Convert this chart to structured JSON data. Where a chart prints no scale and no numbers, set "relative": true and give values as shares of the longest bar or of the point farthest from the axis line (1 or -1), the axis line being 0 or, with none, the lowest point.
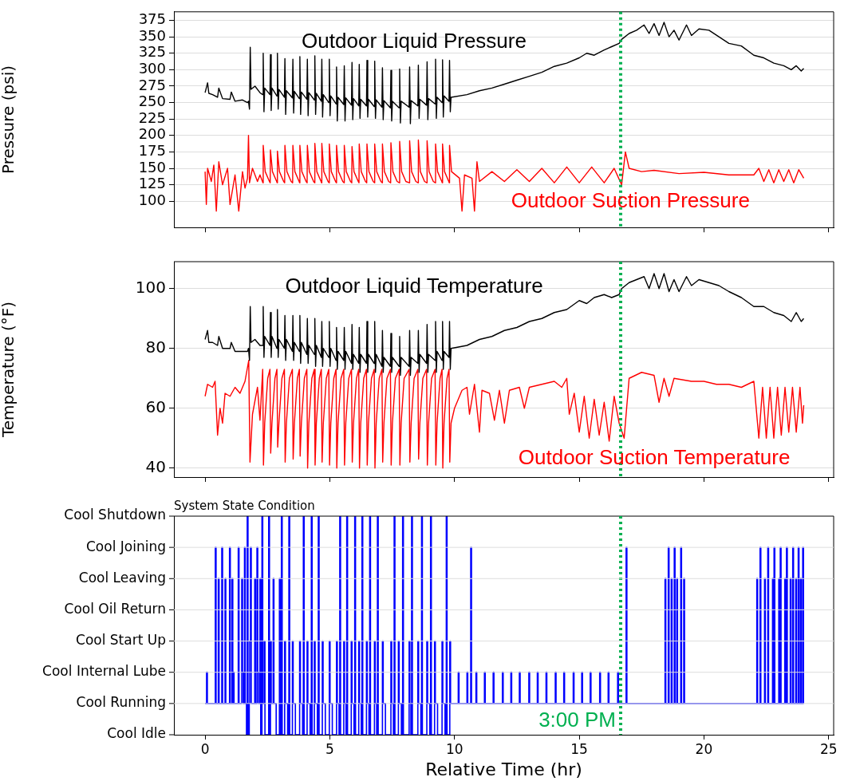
{
  "chart_data": [
    {
      "type": "line",
      "ylabel": "Pressure (psi)",
      "xlim": [
        -1.25,
        25.2
      ],
      "xticks": [
        0,
        5,
        10,
        15,
        20,
        25
      ],
      "ylim": [
        60,
        388
      ],
      "yticks": [
        100,
        125,
        150,
        175,
        200,
        225,
        250,
        275,
        300,
        325,
        350,
        375
      ],
      "grid": "y",
      "tick_labels": "y",
      "ref_lines": [
        {
          "axis": "x",
          "value": 16.66,
          "color": "#00b050",
          "line_style": "dotted"
        }
      ],
      "series": [
        {
          "name": "Outdoor Liquid Pressure",
          "color": "#000000",
          "x": [
            0,
            0.1,
            0.15,
            0.3,
            0.5,
            0.55,
            0.7,
            1.0,
            1.05,
            1.2,
            1.5,
            1.7,
            1.74,
            1.78,
            1.81,
            1.84,
            2.0,
            2.2,
            2.31,
            2.33,
            2.36,
            2.39,
            2.6,
            2.62,
            2.65,
            2.68,
            2.88,
            2.9,
            2.93,
            2.96,
            3.18,
            3.2,
            3.23,
            3.26,
            3.5,
            3.52,
            3.55,
            3.58,
            3.78,
            3.8,
            3.83,
            3.86,
            4.08,
            4.1,
            4.13,
            4.16,
            4.38,
            4.4,
            4.43,
            4.46,
            4.66,
            4.68,
            4.71,
            4.74,
            4.96,
            4.98,
            5.01,
            5.04,
            5.25,
            5.27,
            5.3,
            5.33,
            5.56,
            5.58,
            5.61,
            5.64,
            5.87,
            5.89,
            5.92,
            5.95,
            6.16,
            6.18,
            6.21,
            6.24,
            6.47,
            6.49,
            6.52,
            6.55,
            6.78,
            6.8,
            6.83,
            6.86,
            7.09,
            7.11,
            7.14,
            7.17,
            7.43,
            7.45,
            7.48,
            7.51,
            7.78,
            7.8,
            7.83,
            7.86,
            8.18,
            8.2,
            8.23,
            8.26,
            8.53,
            8.55,
            8.58,
            8.61,
            8.88,
            8.9,
            8.93,
            8.96,
            9.22,
            9.24,
            9.27,
            9.3,
            9.5,
            9.52,
            9.55,
            9.58,
            9.78,
            9.8,
            9.83,
            9.86,
            10.5,
            11,
            11.5,
            12,
            12.5,
            13,
            13.5,
            14,
            14.5,
            15,
            15.3,
            15.6,
            16,
            16.3,
            16.6,
            16.7,
            17,
            17.3,
            17.6,
            17.8,
            18,
            18.2,
            18.4,
            18.6,
            18.8,
            19,
            19.3,
            19.5,
            19.8,
            20.2,
            20.6,
            21,
            21.5,
            22,
            22.4,
            22.8,
            23.2,
            23.5,
            23.7,
            23.9,
            24
          ],
          "values": [
            265,
            280,
            264,
            262,
            258,
            272,
            256,
            255,
            266,
            252,
            254,
            250,
            252,
            240,
            334,
            270,
            275,
            265,
            262,
            325,
            236,
            272,
            262,
            323,
            238,
            272,
            260,
            325,
            240,
            270,
            258,
            317,
            232,
            268,
            257,
            316,
            234,
            267,
            256,
            320,
            232,
            266,
            255,
            316,
            230,
            265,
            254,
            321,
            232,
            264,
            252,
            316,
            228,
            262,
            250,
            316,
            230,
            260,
            248,
            304,
            222,
            258,
            247,
            306,
            222,
            257,
            246,
            311,
            224,
            256,
            245,
            308,
            226,
            255,
            245,
            314,
            228,
            255,
            244,
            313,
            226,
            254,
            243,
            303,
            224,
            253,
            242,
            299,
            222,
            252,
            242,
            301,
            219,
            252,
            243,
            304,
            218,
            253,
            245,
            307,
            226,
            255,
            246,
            312,
            224,
            256,
            248,
            316,
            226,
            258,
            250,
            315,
            228,
            260,
            252,
            314,
            236,
            258,
            262,
            268,
            272,
            278,
            284,
            290,
            296,
            305,
            310,
            318,
            325,
            322,
            330,
            335,
            340,
            346,
            355,
            360,
            368,
            355,
            370,
            352,
            372,
            350,
            360,
            345,
            368,
            352,
            362,
            360,
            350,
            340,
            336,
            322,
            318,
            310,
            306,
            300,
            306,
            298,
            302
          ]
        },
        {
          "name": "Outdoor Suction Pressure",
          "color": "#ff0000",
          "x": [
            0,
            0.05,
            0.1,
            0.25,
            0.35,
            0.45,
            0.55,
            0.7,
            0.9,
            1.0,
            1.2,
            1.35,
            1.5,
            1.6,
            1.7,
            1.74,
            1.78,
            1.9,
            2.1,
            2.2,
            2.32,
            2.33,
            2.41,
            2.58,
            2.61,
            2.62,
            2.7,
            2.87,
            2.89,
            2.9,
            2.98,
            3.15,
            3.19,
            3.2,
            3.28,
            3.45,
            3.51,
            3.52,
            3.6,
            3.77,
            3.79,
            3.8,
            3.88,
            4.05,
            4.09,
            4.1,
            4.18,
            4.35,
            4.39,
            4.4,
            4.48,
            4.65,
            4.67,
            4.68,
            4.76,
            4.93,
            4.97,
            4.98,
            5.06,
            5.23,
            5.26,
            5.27,
            5.35,
            5.52,
            5.57,
            5.58,
            5.66,
            5.83,
            5.88,
            5.89,
            5.97,
            6.14,
            6.17,
            6.18,
            6.26,
            6.43,
            6.48,
            6.49,
            6.57,
            6.74,
            6.79,
            6.8,
            6.88,
            7.05,
            7.1,
            7.11,
            7.19,
            7.36,
            7.44,
            7.45,
            7.53,
            7.7,
            7.79,
            7.8,
            7.88,
            8.05,
            8.19,
            8.2,
            8.28,
            8.45,
            8.54,
            8.55,
            8.63,
            8.8,
            8.89,
            8.9,
            8.98,
            9.15,
            9.23,
            9.24,
            9.32,
            9.49,
            9.51,
            9.52,
            9.6,
            9.77,
            9.79,
            9.8,
            9.88,
            10.2,
            10.3,
            10.4,
            10.7,
            10.8,
            10.9,
            11.0,
            11.5,
            12,
            12.5,
            13,
            13.5,
            14,
            14.5,
            15,
            15.5,
            16,
            16.4,
            16.7,
            16.85,
            17,
            17.5,
            18,
            19,
            20,
            21,
            22,
            22.2,
            22.4,
            22.6,
            22.8,
            23,
            23.2,
            23.4,
            23.6,
            23.8,
            24
          ],
          "values": [
            145,
            95,
            150,
            130,
            155,
            85,
            160,
            125,
            150,
            95,
            140,
            85,
            145,
            120,
            135,
            200,
            128,
            150,
            130,
            140,
            128,
            185,
            145,
            130,
            128,
            178,
            145,
            130,
            128,
            176,
            145,
            130,
            128,
            185,
            145,
            130,
            128,
            185,
            145,
            130,
            128,
            185,
            145,
            130,
            128,
            185,
            145,
            130,
            128,
            188,
            145,
            130,
            128,
            188,
            145,
            130,
            128,
            187,
            145,
            130,
            128,
            185,
            145,
            130,
            128,
            185,
            145,
            130,
            128,
            183,
            145,
            130,
            128,
            187,
            145,
            130,
            128,
            187,
            145,
            130,
            128,
            187,
            145,
            130,
            128,
            187,
            145,
            130,
            128,
            189,
            145,
            130,
            128,
            191,
            145,
            130,
            128,
            192,
            145,
            130,
            128,
            193,
            145,
            130,
            128,
            192,
            145,
            130,
            128,
            187,
            145,
            130,
            128,
            187,
            145,
            130,
            128,
            185,
            145,
            135,
            85,
            140,
            135,
            85,
            160,
            130,
            145,
            130,
            148,
            130,
            150,
            128,
            152,
            128,
            152,
            128,
            150,
            125,
            175,
            150,
            145,
            147,
            142,
            144,
            140,
            140,
            150,
            130,
            148,
            128,
            148,
            130,
            148,
            128,
            148,
            135
          ]
        }
      ]
    },
    {
      "type": "line",
      "ylabel": "Temperature (°F)",
      "xlim": [
        -1.25,
        25.2
      ],
      "xticks": [
        0,
        5,
        10,
        15,
        20,
        25
      ],
      "ylim": [
        37,
        109
      ],
      "yticks": [
        40,
        60,
        80,
        100
      ],
      "grid": "y",
      "tick_labels": "y",
      "ref_lines": [
        {
          "axis": "x",
          "value": 16.66,
          "color": "#00b050",
          "line_style": "dotted"
        }
      ],
      "series": [
        {
          "name": "Outdoor Liquid Temperature",
          "color": "#000000",
          "x": [
            0,
            0.1,
            0.15,
            0.3,
            0.5,
            0.55,
            0.7,
            1.0,
            1.05,
            1.2,
            1.5,
            1.7,
            1.74,
            1.78,
            1.81,
            1.84,
            2.0,
            2.2,
            2.31,
            2.33,
            2.36,
            2.39,
            2.6,
            2.62,
            2.65,
            2.68,
            2.88,
            2.9,
            2.93,
            2.96,
            3.18,
            3.2,
            3.23,
            3.26,
            3.5,
            3.52,
            3.55,
            3.58,
            3.78,
            3.8,
            3.83,
            3.86,
            4.08,
            4.1,
            4.13,
            4.16,
            4.38,
            4.4,
            4.43,
            4.46,
            4.66,
            4.68,
            4.71,
            4.74,
            4.96,
            4.98,
            5.01,
            5.04,
            5.25,
            5.27,
            5.3,
            5.33,
            5.56,
            5.58,
            5.61,
            5.64,
            5.87,
            5.89,
            5.92,
            5.95,
            6.16,
            6.18,
            6.21,
            6.24,
            6.47,
            6.49,
            6.52,
            6.55,
            6.78,
            6.8,
            6.83,
            6.86,
            7.09,
            7.11,
            7.14,
            7.17,
            7.43,
            7.45,
            7.48,
            7.51,
            7.78,
            7.8,
            7.83,
            7.86,
            8.18,
            8.2,
            8.23,
            8.26,
            8.53,
            8.55,
            8.58,
            8.61,
            8.88,
            8.9,
            8.93,
            8.96,
            9.22,
            9.24,
            9.27,
            9.3,
            9.5,
            9.52,
            9.55,
            9.58,
            9.78,
            9.8,
            9.83,
            9.86,
            10.5,
            11,
            11.5,
            12,
            12.5,
            13,
            13.5,
            14,
            14.5,
            15,
            15.3,
            15.6,
            16,
            16.3,
            16.6,
            16.7,
            17,
            17.3,
            17.6,
            17.8,
            18,
            18.2,
            18.4,
            18.6,
            18.8,
            19,
            19.3,
            19.5,
            19.8,
            20.2,
            20.6,
            21,
            21.5,
            22,
            22.4,
            22.8,
            23.2,
            23.5,
            23.7,
            23.9,
            24
          ],
          "values": [
            83,
            86,
            82,
            82,
            81,
            84,
            80,
            80,
            82,
            79,
            79,
            79,
            80,
            76,
            94,
            82,
            83,
            81,
            81,
            94,
            77,
            84,
            81,
            92,
            77,
            84,
            80,
            93,
            77,
            83,
            80,
            91,
            76,
            83,
            79,
            91,
            76,
            82,
            79,
            91,
            75,
            82,
            78,
            90,
            75,
            81,
            78,
            90,
            74,
            81,
            77,
            89,
            74,
            80,
            77,
            89,
            74,
            80,
            76,
            87,
            73,
            79,
            76,
            87,
            73,
            79,
            75,
            88,
            73,
            78,
            75,
            87,
            72,
            78,
            75,
            89,
            72,
            78,
            75,
            89,
            72,
            78,
            74,
            86,
            72,
            77,
            74,
            85,
            72,
            77,
            74,
            84,
            71,
            77,
            74,
            86,
            71,
            77,
            75,
            86,
            72,
            78,
            75,
            88,
            72,
            78,
            76,
            89,
            72,
            79,
            76,
            89,
            73,
            79,
            77,
            89,
            73,
            80,
            81,
            83,
            84,
            86,
            87,
            89,
            90,
            92,
            93,
            96,
            95,
            97,
            98,
            97,
            98,
            100,
            102,
            103,
            104,
            100,
            105,
            100,
            105,
            99,
            103,
            99,
            104,
            101,
            103,
            102,
            101,
            99,
            97,
            94,
            94,
            92,
            91,
            89,
            92,
            89,
            90
          ]
        },
        {
          "name": "Outdoor Suction Temperature",
          "color": "#ff0000",
          "x": [
            0,
            0.1,
            0.3,
            0.4,
            0.5,
            0.6,
            0.7,
            0.8,
            1.0,
            1.2,
            1.4,
            1.6,
            1.75,
            1.8,
            1.9,
            2.1,
            2.2,
            2.31,
            2.34,
            2.39,
            2.51,
            2.6,
            2.63,
            2.68,
            2.8,
            2.88,
            2.91,
            2.96,
            3.08,
            3.18,
            3.21,
            3.26,
            3.38,
            3.5,
            3.53,
            3.58,
            3.7,
            3.78,
            3.81,
            3.86,
            3.98,
            4.08,
            4.11,
            4.16,
            4.28,
            4.38,
            4.41,
            4.46,
            4.58,
            4.66,
            4.69,
            4.74,
            4.86,
            4.96,
            4.99,
            5.04,
            5.16,
            5.25,
            5.28,
            5.33,
            5.45,
            5.56,
            5.59,
            5.64,
            5.76,
            5.87,
            5.9,
            5.95,
            6.07,
            6.16,
            6.19,
            6.24,
            6.36,
            6.47,
            6.5,
            6.55,
            6.67,
            6.78,
            6.81,
            6.86,
            6.98,
            7.09,
            7.12,
            7.17,
            7.29,
            7.43,
            7.46,
            7.51,
            7.63,
            7.78,
            7.81,
            7.86,
            7.98,
            8.18,
            8.21,
            8.26,
            8.38,
            8.53,
            8.56,
            8.61,
            8.73,
            8.88,
            8.91,
            8.96,
            9.08,
            9.22,
            9.25,
            9.3,
            9.42,
            9.5,
            9.53,
            9.58,
            9.7,
            9.78,
            9.81,
            9.86,
            10.0,
            10.3,
            10.5,
            10.6,
            10.8,
            11.0,
            11.1,
            11.4,
            11.6,
            11.8,
            12.0,
            12.2,
            12.6,
            12.8,
            13.0,
            13.5,
            14,
            14.3,
            14.5,
            14.6,
            14.8,
            15.0,
            15.2,
            15.4,
            15.6,
            15.8,
            16.0,
            16.2,
            16.4,
            16.6,
            16.8,
            16.9,
            17.0,
            17.5,
            18,
            18.2,
            18.4,
            18.6,
            18.8,
            19.5,
            20,
            20.5,
            21,
            21.5,
            22,
            22.2,
            22.35,
            22.5,
            22.65,
            22.8,
            22.95,
            23.1,
            23.25,
            23.4,
            23.55,
            23.7,
            23.85,
            23.95,
            24
          ],
          "values": [
            64,
            68,
            67,
            69,
            51,
            60,
            55,
            65,
            64,
            67,
            65,
            69,
            76,
            42,
            58,
            67,
            56,
            73,
            41,
            55,
            70,
            73,
            45,
            55,
            70,
            73,
            47,
            55,
            70,
            73,
            42,
            55,
            70,
            73,
            43,
            55,
            70,
            73,
            44,
            55,
            70,
            73,
            40,
            55,
            70,
            73,
            41,
            55,
            70,
            73,
            42,
            55,
            70,
            73,
            41,
            55,
            70,
            73,
            40,
            55,
            70,
            73,
            41,
            55,
            70,
            73,
            42,
            55,
            70,
            73,
            40,
            55,
            70,
            73,
            41,
            55,
            70,
            73,
            40,
            55,
            70,
            73,
            42,
            55,
            70,
            73,
            41,
            55,
            70,
            73,
            41,
            55,
            70,
            73,
            42,
            55,
            70,
            73,
            43,
            55,
            70,
            73,
            41,
            55,
            70,
            73,
            41,
            55,
            70,
            73,
            40,
            55,
            70,
            73,
            42,
            55,
            60,
            66,
            67,
            58,
            68,
            52,
            66,
            65,
            56,
            66,
            55,
            66,
            67,
            60,
            67,
            68,
            69,
            67,
            70,
            58,
            65,
            52,
            64,
            50,
            63,
            51,
            62,
            49,
            64,
            55,
            50,
            60,
            70,
            72,
            71,
            62,
            70,
            64,
            70,
            69,
            69,
            68,
            68,
            67,
            69,
            50,
            67,
            50,
            67,
            50,
            67,
            51,
            67,
            52,
            67,
            52,
            67,
            55,
            61
          ]
        }
      ]
    },
    {
      "type": "step",
      "title": "System State Condition",
      "xlabel": "Relative Time (hr)",
      "xlim": [
        -1.25,
        25.2
      ],
      "xticks": [
        0,
        5,
        10,
        15,
        20,
        25
      ],
      "relative": true,
      "grid": "y",
      "ref_lines": [
        {
          "axis": "x",
          "value": 16.66,
          "color": "#00b050",
          "line_style": "dotted"
        }
      ],
      "annotations": [
        "3:00 PM",
        "Cool Shutdown",
        "Cool Joining",
        "Cool Leaving",
        "Cool Oil Return",
        "Cool Start Up",
        "Cool Internal Lube",
        "Cool Running",
        "Cool Idle"
      ],
      "series": [
        {
          "color": "#0000ff",
          "x": [
            0,
            0.06,
            0.09,
            0.41,
            0.44,
            0.53,
            0.56,
            0.67,
            0.7,
            0.8,
            0.83,
            0.98,
            1.01,
            1.08,
            1.11,
            1.13,
            1.16,
            1.33,
            1.36,
            1.47,
            1.5,
            1.53,
            1.58,
            1.61,
            1.66,
            1.69,
            1.72,
            1.77,
            1.79,
            1.82,
            1.85,
            1.99,
            2.02,
            2.08,
            2.11,
            2.14,
            2.2,
            2.23,
            2.28,
            2.31,
            2.37,
            2.4,
            2.55,
            2.58,
            2.62,
            2.65,
            2.73,
            2.76,
            2.85,
            2.98,
            3.01,
            3.06,
            3.09,
            3.19,
            3.22,
            3.31,
            3.36,
            3.39,
            3.5,
            3.53,
            3.62,
            3.79,
            3.82,
            3.91,
            3.94,
            3.97,
            4.09,
            4.12,
            4.21,
            4.26,
            4.29,
            4.38,
            4.41,
            4.5,
            4.54,
            4.57,
            4.7,
            4.73,
            4.82,
            4.98,
            5.01,
            5.1,
            5.27,
            5.3,
            5.37,
            5.4,
            5.43,
            5.56,
            5.59,
            5.65,
            5.68,
            5.71,
            5.86,
            5.89,
            5.97,
            6.0,
            6.03,
            6.16,
            6.19,
            6.26,
            6.29,
            6.32,
            6.47,
            6.5,
            6.57,
            6.6,
            6.63,
            6.79,
            6.82,
            6.88,
            6.91,
            6.94,
            7.11,
            7.14,
            7.23,
            7.45,
            7.48,
            7.55,
            7.58,
            7.61,
            7.75,
            7.78,
            7.87,
            7.92,
            7.95,
            8.18,
            8.21,
            8.25,
            8.28,
            8.31,
            8.53,
            8.56,
            8.65,
            8.68,
            8.71,
            8.89,
            8.92,
            9.01,
            9.04,
            9.07,
            9.2,
            9.23,
            9.32,
            9.5,
            9.53,
            9.62,
            9.67,
            9.7,
            9.81,
            9.84,
            10.15,
            10.18,
            10.5,
            10.53,
            10.65,
            10.68,
            10.86,
            10.89,
            11.2,
            11.23,
            11.55,
            11.58,
            11.92,
            11.95,
            12.26,
            12.29,
            12.6,
            12.63,
            12.98,
            13.01,
            13.32,
            13.35,
            13.67,
            13.7,
            14.04,
            14.07,
            14.38,
            14.41,
            14.76,
            14.79,
            15.1,
            15.13,
            15.44,
            15.47,
            15.82,
            15.85,
            16.16,
            16.19,
            16.54,
            16.57,
            16.88,
            16.91,
            18.44,
            18.47,
            18.57,
            18.6,
            18.69,
            18.72,
            18.81,
            18.84,
            18.91,
            18.94,
            19.07,
            19.1,
            19.19,
            19.22,
            22.12,
            22.15,
            22.25,
            22.28,
            22.43,
            22.46,
            22.56,
            22.59,
            22.75,
            22.78,
            22.81,
            22.84,
            23.0,
            23.03,
            23.06,
            23.09,
            23.24,
            23.27,
            23.31,
            23.34,
            23.46,
            23.49,
            23.56,
            23.59,
            23.68,
            23.71,
            23.78,
            23.81,
            23.87,
            23.9,
            23.96,
            23.99,
            24
          ],
          "values": [
            0.143,
            0.286,
            0.143,
            0.857,
            0.143,
            0.714,
            0.143,
            0.857,
            0.143,
            0.714,
            0.143,
            0.857,
            0.143,
            0.714,
            0.143,
            0.286,
            0.143,
            0.857,
            0.143,
            0.714,
            0.286,
            0.143,
            0.857,
            0.143,
            0,
            1,
            0,
            0.143,
            0.429,
            0.857,
            0.143,
            0.714,
            0.143,
            0.857,
            0.286,
            0.143,
            0.714,
            0,
            1,
            0.143,
            0.429,
            0,
            1,
            0,
            0.429,
            0.143,
            0.714,
            0.143,
            0,
            0.714,
            0,
            1,
            0,
            0.429,
            0.143,
            0,
            1,
            0,
            0.429,
            0.143,
            0,
            0.429,
            0.143,
            0,
            1,
            0,
            0.429,
            0.143,
            0,
            1,
            0,
            0.429,
            0.143,
            0,
            1,
            0,
            0.429,
            0.143,
            0,
            0.429,
            0.143,
            0,
            0.429,
            0.143,
            0,
            1,
            0,
            0.429,
            0.143,
            0,
            1,
            0,
            0.429,
            0.143,
            0,
            1,
            0,
            0.429,
            0.143,
            0,
            1,
            0,
            0.429,
            0.143,
            0,
            1,
            0,
            0.429,
            0.143,
            0,
            1,
            0,
            0.429,
            0.143,
            0,
            0.429,
            0.143,
            0,
            1,
            0,
            0.429,
            0.143,
            0,
            1,
            0,
            0.429,
            0.143,
            0,
            1,
            0,
            0.429,
            0.143,
            0,
            1,
            0,
            0.429,
            0.143,
            0,
            1,
            0,
            0.429,
            0.143,
            0,
            0.429,
            0.143,
            0,
            1,
            0,
            0.429,
            0.143,
            0.286,
            0.143,
            0.286,
            0.143,
            0.857,
            0.143,
            0.286,
            0.143,
            0.286,
            0.143,
            0.286,
            0.143,
            0.286,
            0.143,
            0.286,
            0.143,
            0.286,
            0.143,
            0.286,
            0.143,
            0.286,
            0.143,
            0.286,
            0.143,
            0.286,
            0.143,
            0.286,
            0.143,
            0.286,
            0.143,
            0.286,
            0.143,
            0.286,
            0.143,
            0.286,
            0.143,
            0.286,
            0.143,
            0.286,
            0.143,
            0.857,
            0.143,
            0.714,
            0.143,
            0.857,
            0.143,
            0.714,
            0.143,
            0.857,
            0.143,
            0.714,
            0.143,
            0.857,
            0.143,
            0.714,
            0.143,
            0.714,
            0.143,
            0.857,
            0.143,
            0.714,
            0.143,
            0.857,
            0.143,
            0.714,
            0.143,
            0.857,
            0.143,
            0.714,
            0.143,
            0.857,
            0.143,
            0.714,
            0.143,
            0.857,
            0.143,
            0.714,
            0.143,
            0.857,
            0.143,
            0.714,
            0.143,
            0.857,
            0.143,
            0.714,
            0.143,
            0.857,
            0.143,
            0.143
          ]
        }
      ]
    }
  ]
}
